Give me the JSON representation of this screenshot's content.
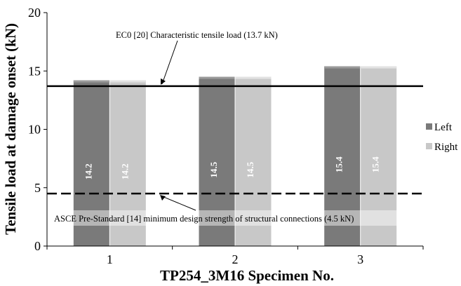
{
  "chart_data": {
    "type": "bar",
    "title": "",
    "xlabel": "TP254_3M16 Specimen No.",
    "ylabel": "Tensile load at damage onset (kN)",
    "categories": [
      "1",
      "2",
      "3"
    ],
    "series": [
      {
        "name": "Left",
        "values": [
          14.2,
          14.5,
          15.4
        ],
        "labels": [
          "14.2",
          "14.5",
          "15.4"
        ],
        "color": "#7a7a7a"
      },
      {
        "name": "Right",
        "values": [
          14.2,
          14.5,
          15.4
        ],
        "labels": [
          "14.2",
          "14.5",
          "15.4"
        ],
        "color": "#c8c8c8"
      }
    ],
    "ylim": [
      0,
      20
    ],
    "yticks": [
      0,
      5,
      10,
      15,
      20
    ],
    "yticklabels": [
      "0",
      "5",
      "10",
      "15",
      "20"
    ],
    "grid": false,
    "legend_position": "right",
    "reference_lines": [
      {
        "value": 13.7,
        "style": "solid",
        "label": "EC0 [20] Characteristic tensile load (13.7 kN)"
      },
      {
        "value": 4.5,
        "style": "dashed",
        "label": "ASCE Pre-Standard [14] minimum design strength of structural connections (4.5 kN)"
      }
    ]
  }
}
